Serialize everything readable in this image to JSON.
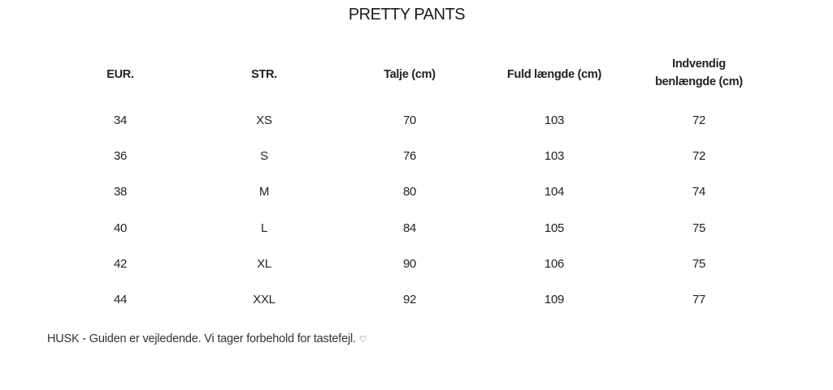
{
  "title": "PRETTY PANTS",
  "table": {
    "headers": [
      "EUR.",
      "STR.",
      "Talje (cm)",
      "Fuld længde (cm)",
      "Indvendig benlængde (cm)"
    ],
    "header_lines": {
      "inner_1": "Indvendig",
      "inner_2": "benlængde (cm)"
    },
    "rows": [
      [
        "34",
        "XS",
        "70",
        "103",
        "72"
      ],
      [
        "36",
        "S",
        "76",
        "103",
        "72"
      ],
      [
        "38",
        "M",
        "80",
        "104",
        "74"
      ],
      [
        "40",
        "L",
        "84",
        "105",
        "75"
      ],
      [
        "42",
        "XL",
        "90",
        "106",
        "75"
      ],
      [
        "44",
        "XXL",
        "92",
        "109",
        "77"
      ]
    ]
  },
  "note": {
    "text": "HUSK - Guiden er vejledende. Vi tager forbehold for tastefejl.",
    "icon": "heart-icon",
    "icon_glyph": "♡"
  }
}
